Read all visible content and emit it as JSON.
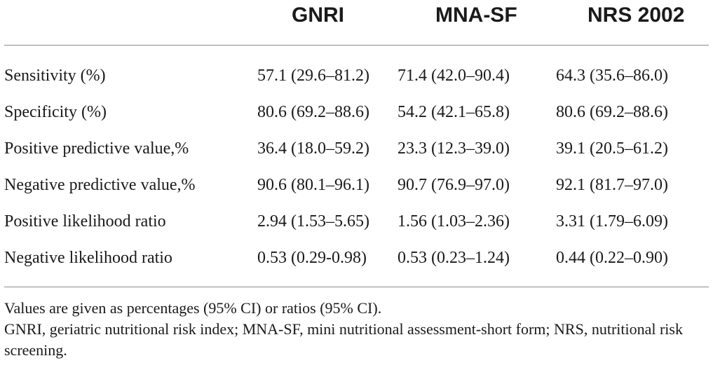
{
  "table": {
    "columns": [
      "GNRI",
      "MNA-SF",
      "NRS 2002"
    ],
    "rows": [
      {
        "label": "Sensitivity (%)",
        "values": [
          "57.1 (29.6–81.2)",
          "71.4 (42.0–90.4)",
          "64.3 (35.6–86.0)"
        ]
      },
      {
        "label": "Specificity (%)",
        "values": [
          "80.6 (69.2–88.6)",
          "54.2 (42.1–65.8)",
          "80.6 (69.2–88.6)"
        ]
      },
      {
        "label": "Positive predictive value,%",
        "values": [
          "36.4 (18.0–59.2)",
          "23.3 (12.3–39.0)",
          "39.1 (20.5–61.2)"
        ]
      },
      {
        "label": "Negative predictive value,%",
        "values": [
          "90.6 (80.1–96.1)",
          "90.7 (76.9–97.0)",
          "92.1 (81.7–97.0)"
        ]
      },
      {
        "label": "Positive likelihood ratio",
        "values": [
          "2.94 (1.53–5.65)",
          "1.56 (1.03–2.36)",
          "3.31 (1.79–6.09)"
        ]
      },
      {
        "label": "Negative likelihood ratio",
        "values": [
          "0.53 (0.29-0.98)",
          "0.53 (0.23–1.24)",
          "0.44 (0.22–0.90)"
        ]
      }
    ]
  },
  "footnotes": {
    "values_note": "Values are given as percentages (95% CI) or ratios (95% CI).",
    "abbreviations": "GNRI, geriatric nutritional risk index; MNA-SF, mini nutritional assessment-short form; NRS, nutritional risk screening."
  }
}
